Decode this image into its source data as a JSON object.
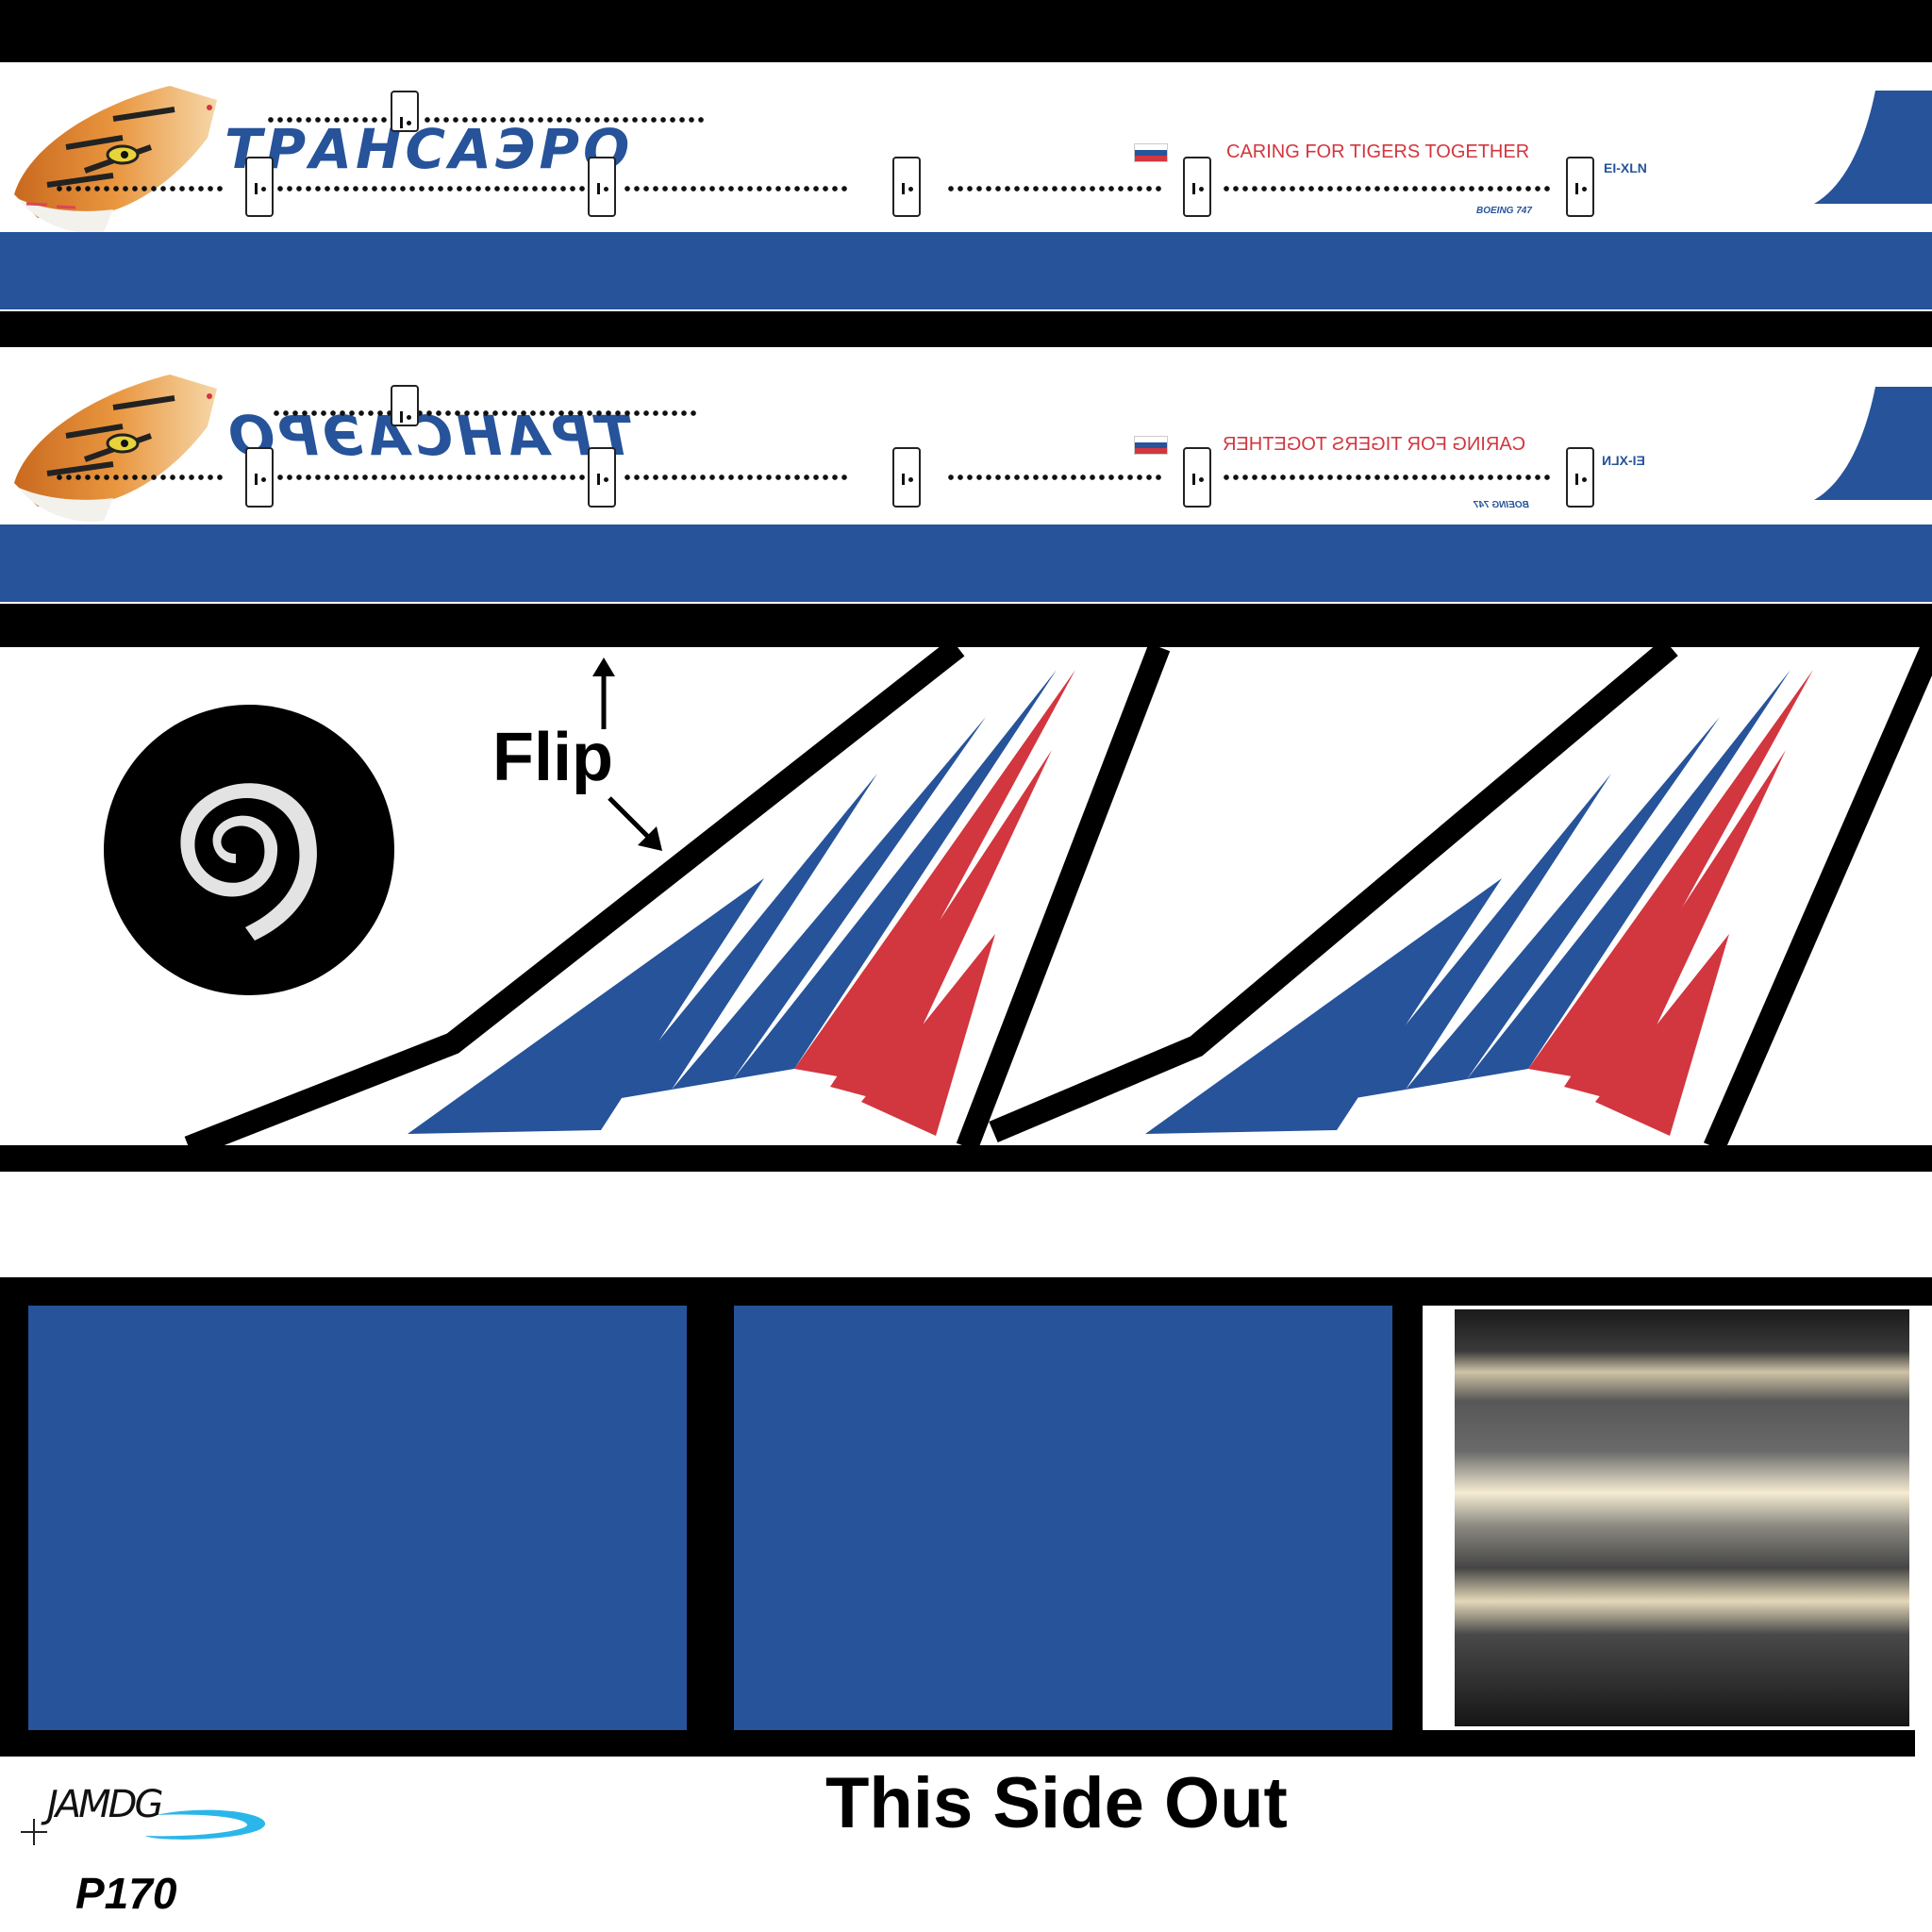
{
  "livery": {
    "brand_text": "ТРАНСАЭРО",
    "slogan": "CARING FOR TIGERS TOGETHER",
    "registration": "EI-XLN",
    "aircraft_model": "BOEING 747",
    "colors": {
      "blue": "#26539a",
      "red": "#d2363f",
      "black": "#000000",
      "white": "#ffffff"
    }
  },
  "annotations": {
    "flip_label": "Flip",
    "this_side_out": "This Side Out"
  },
  "footer": {
    "logo_text": "JAMDG",
    "code": "P170"
  }
}
